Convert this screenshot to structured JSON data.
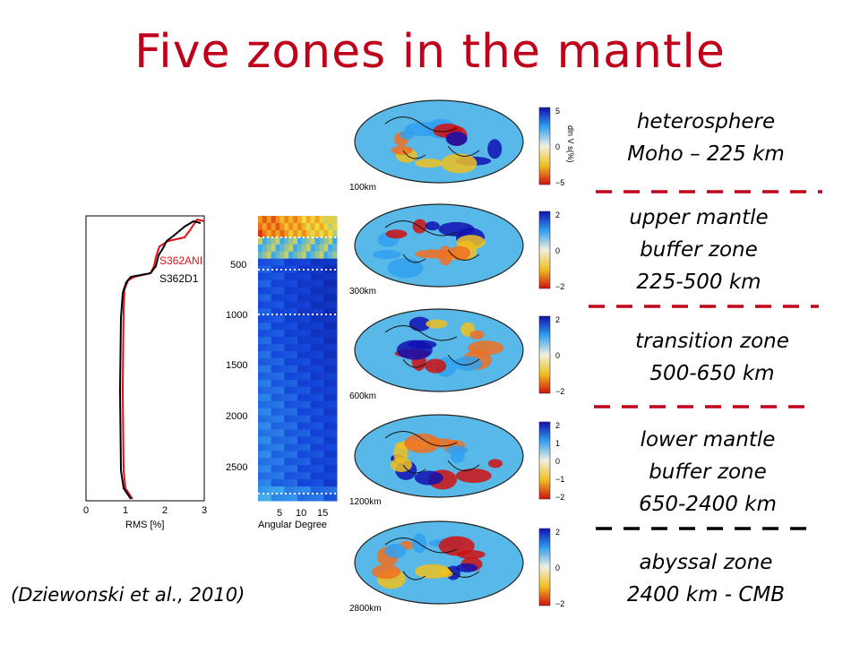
{
  "title": "Five zones in the mantle",
  "citation": "(Dziewonski et al., 2010)",
  "colors": {
    "title": "#c0001a",
    "divider": "#c0001a",
    "rms_s362ani": "#e0101a",
    "rms_s362d1": "#000000"
  },
  "rms_plot": {
    "xlabel": "RMS [%]",
    "x_ticks": [
      "0",
      "1",
      "2",
      "3"
    ],
    "legend": [
      "S362ANI",
      "S362D1"
    ]
  },
  "spectrum_plot": {
    "xlabel": "Angular Degree",
    "x_ticks": [
      "5",
      "10",
      "15"
    ],
    "y_ticks": [
      "500",
      "1000",
      "1500",
      "2000",
      "2500"
    ]
  },
  "maps": [
    {
      "depth_label": "100km",
      "scale_ticks": [
        "5",
        "0",
        "−5"
      ],
      "unit": "dln V s(%)"
    },
    {
      "depth_label": "300km",
      "scale_ticks": [
        "2",
        "0",
        "−2"
      ]
    },
    {
      "depth_label": "600km",
      "scale_ticks": [
        "2",
        "0",
        "−2"
      ]
    },
    {
      "depth_label": "1200km",
      "scale_ticks": [
        "2",
        "1",
        "0",
        "−1",
        "−2"
      ]
    },
    {
      "depth_label": "2800km",
      "scale_ticks": [
        "2",
        "0",
        "−2"
      ]
    }
  ],
  "zones": [
    {
      "line1": "heterosphere",
      "line2": "Moho – 225 km",
      "line3": ""
    },
    {
      "line1": "upper mantle",
      "line2": "buffer zone",
      "line3": "225-500 km"
    },
    {
      "line1": "transition zone",
      "line2": "500-650 km",
      "line3": ""
    },
    {
      "line1": "lower mantle",
      "line2": "buffer zone",
      "line3": "650-2400 km"
    },
    {
      "line1": "abyssal  zone",
      "line2": "2400 km - CMB",
      "line3": ""
    }
  ]
}
